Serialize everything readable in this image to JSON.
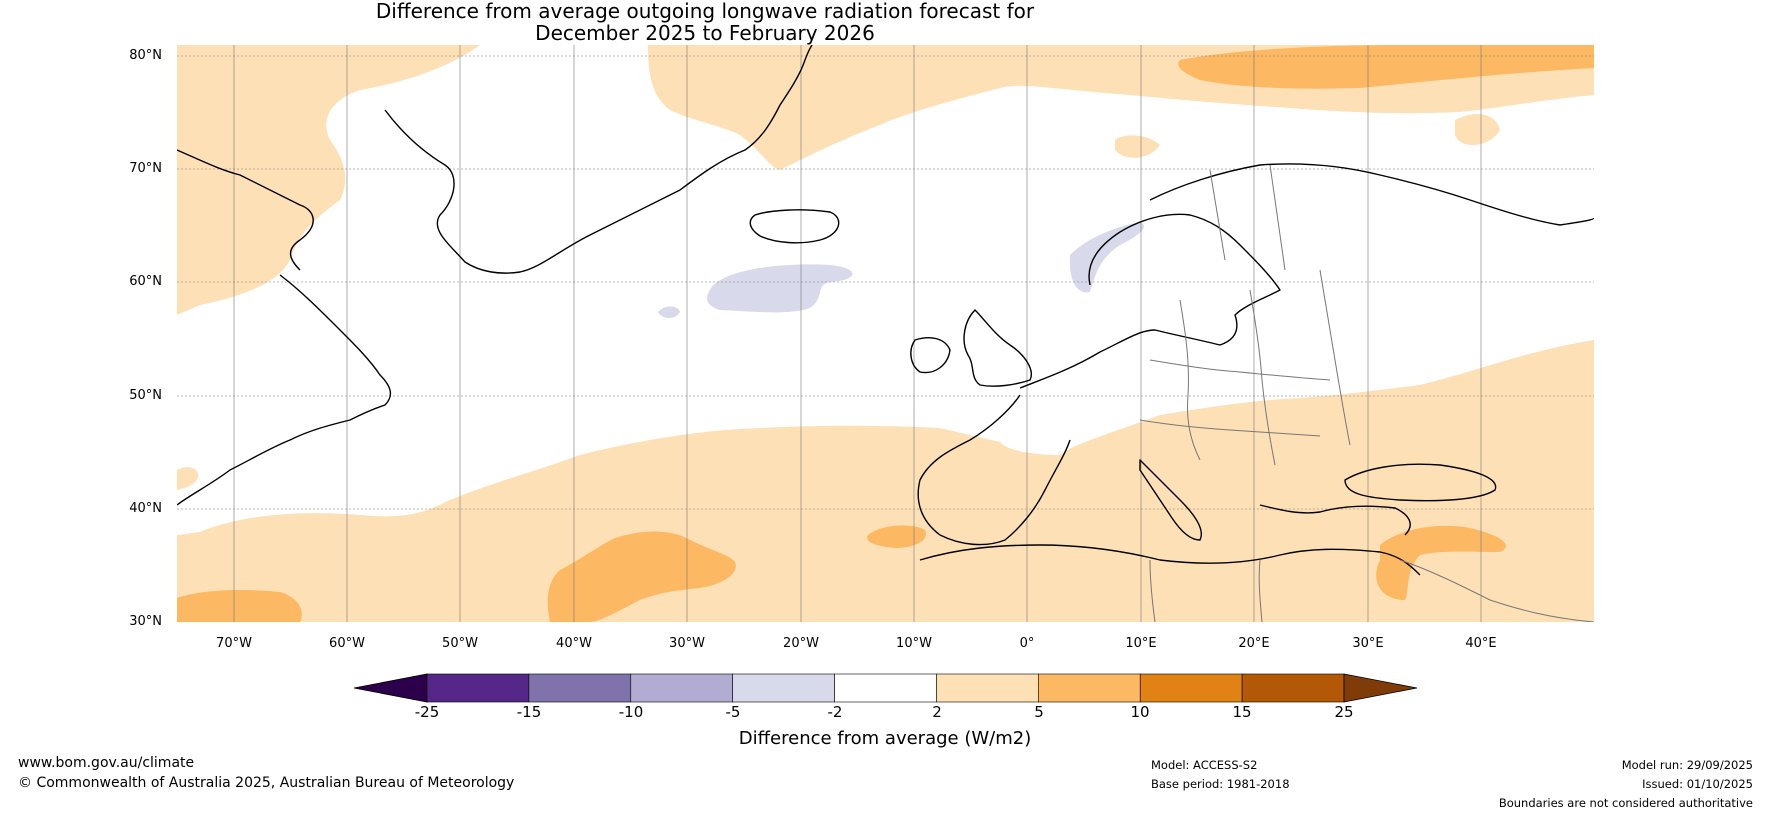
{
  "title": {
    "line1": "Difference from average outgoing longwave radiation forecast for",
    "line2": "December 2025 to February 2026"
  },
  "map": {
    "lat_labels": [
      "80°N",
      "70°N",
      "60°N",
      "50°N",
      "40°N",
      "30°N"
    ],
    "lon_labels": [
      "70°W",
      "60°W",
      "50°W",
      "40°W",
      "30°W",
      "20°W",
      "10°W",
      "0°",
      "10°E",
      "20°E",
      "30°E",
      "40°E"
    ],
    "extent": {
      "lon_min": -75,
      "lon_max": 50,
      "lat_min": 30,
      "lat_max": 81
    }
  },
  "colorbar": {
    "ticks": [
      "-25",
      "-15",
      "-10",
      "-5",
      "-2",
      "2",
      "5",
      "10",
      "15",
      "25"
    ],
    "colors": [
      "#2d004b",
      "#542788",
      "#8073ac",
      "#b2abd2",
      "#d8daeb",
      "#ffffff",
      "#fee0b6",
      "#fdb863",
      "#e08214",
      "#b35806",
      "#7f3b08"
    ],
    "label": "Difference from average (W/m2)"
  },
  "footer": {
    "website": "www.bom.gov.au/climate",
    "copyright": "© Commonwealth of Australia 2025, Australian Bureau of Meteorology",
    "model": "Model: ACCESS-S2",
    "base_period": "Base period: 1981-2018",
    "model_run": "Model run: 29/09/2025",
    "issued": "Issued: 01/10/2025",
    "disclaimer": "Boundaries are not considered authoritative"
  }
}
